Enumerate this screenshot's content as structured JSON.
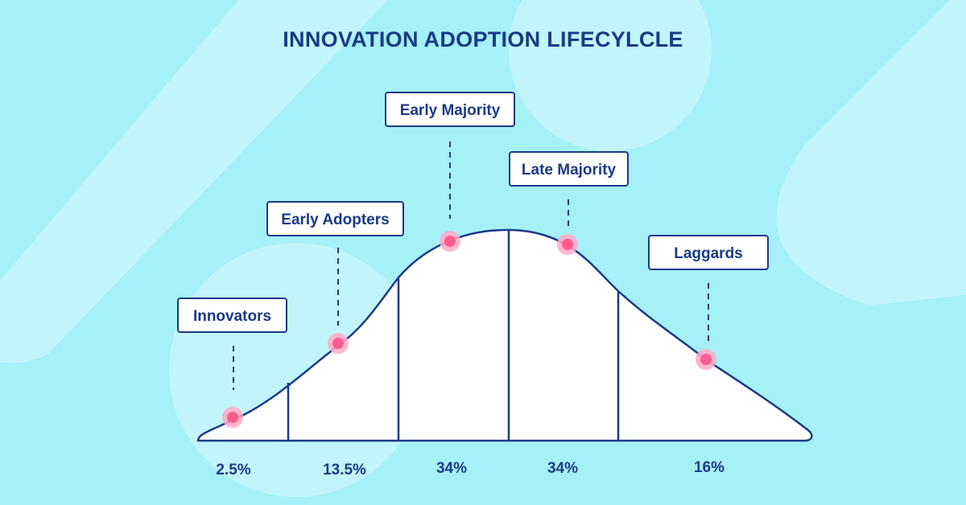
{
  "title": "INNOVATION ADOPTION LIFECYLCLE",
  "colors": {
    "background": "#a6f0f8",
    "background_shape": "#c2f5fb",
    "ink": "#1b3a86",
    "marker": "#ff5b8f",
    "marker_halo": "#ffaac8",
    "curve_fill": "#ffffff"
  },
  "segments": [
    {
      "label": "Innovators",
      "percent": "2.5%"
    },
    {
      "label": "Early Adopters",
      "percent": "13.5%"
    },
    {
      "label": "Early Majority",
      "percent": "34%"
    },
    {
      "label": "Late Majority",
      "percent": "34%"
    },
    {
      "label": "Laggards",
      "percent": "16%"
    }
  ]
}
